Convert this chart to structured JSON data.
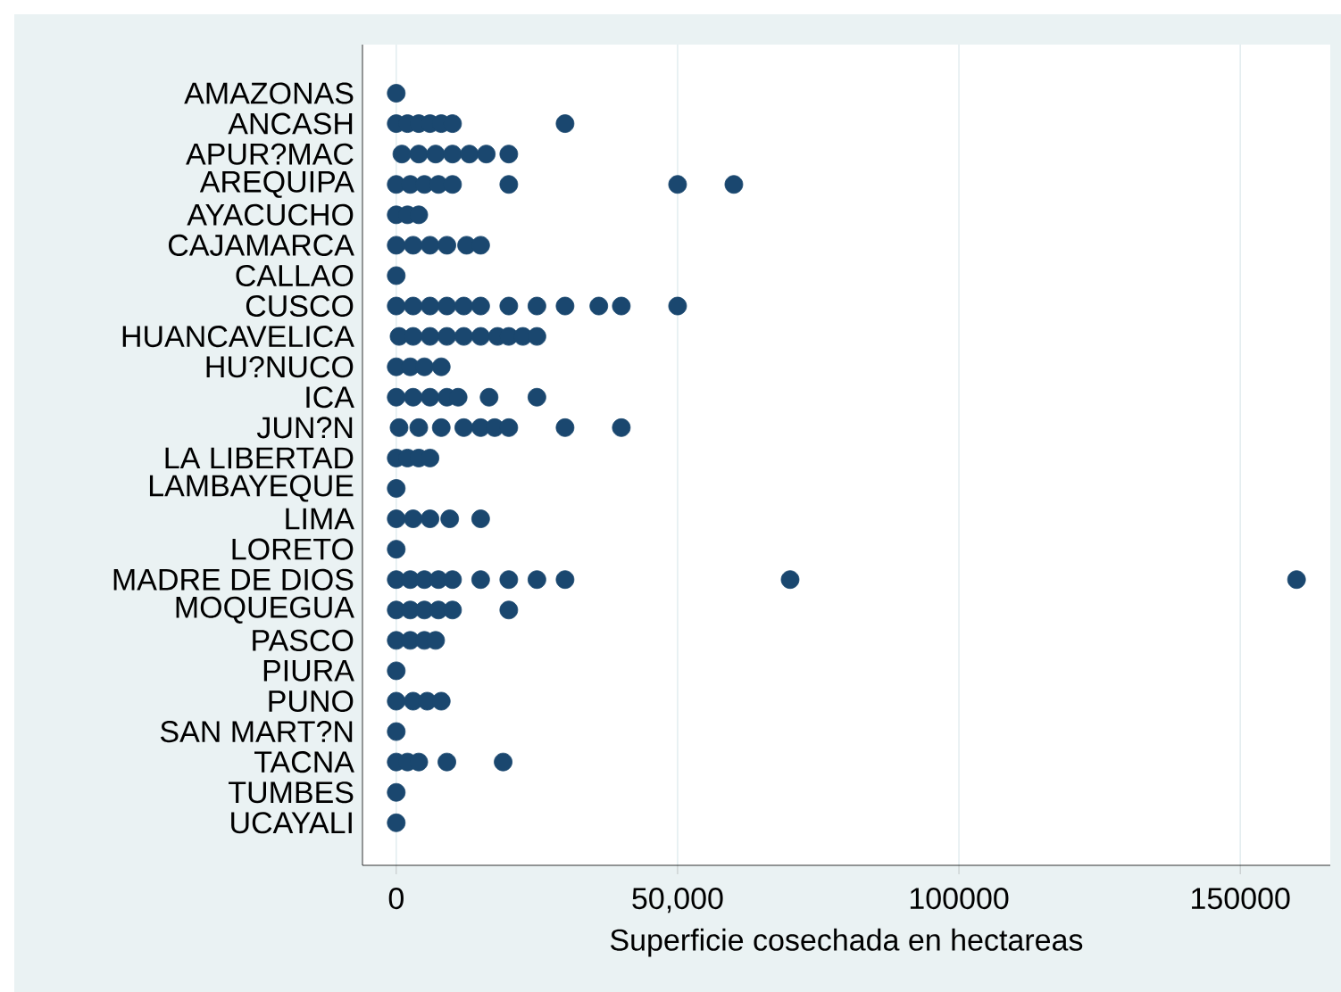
{
  "chart_data": {
    "type": "scatter",
    "orientation": "horizontal",
    "xlabel": "Superficie cosechada en hectareas",
    "categories": [
      "AMAZONAS",
      "ANCASH",
      "APUR?MAC",
      "AREQUIPA",
      "AYACUCHO",
      "CAJAMARCA",
      "CALLAO",
      "CUSCO",
      "HUANCAVELICA",
      "HU?NUCO",
      "ICA",
      "JUN?N",
      "LA LIBERTAD",
      "LAMBAYEQUE",
      "LIMA",
      "LORETO",
      "MADRE DE DIOS",
      "MOQUEGUA",
      "PASCO",
      "PIURA",
      "PUNO",
      "SAN MART?N",
      "TACNA",
      "TUMBES",
      "UCAYALI"
    ],
    "series": [
      {
        "color": "#1a476f",
        "values": [
          0,
          0,
          1000,
          0,
          0,
          0,
          0,
          0,
          500,
          0,
          0,
          500,
          0,
          0,
          0,
          0,
          0,
          0,
          0,
          0,
          0,
          0,
          0,
          0,
          0
        ]
      },
      {
        "color": "#1a476f",
        "values": [
          null,
          2000,
          4000,
          2500,
          2000,
          3000,
          null,
          3000,
          3000,
          2500,
          3000,
          4000,
          2000,
          null,
          3000,
          null,
          2500,
          2500,
          2500,
          null,
          3000,
          null,
          2000,
          null,
          null
        ]
      },
      {
        "color": "#1a476f",
        "values": [
          null,
          4000,
          7000,
          5000,
          4000,
          6000,
          null,
          6000,
          6000,
          5000,
          6000,
          8000,
          4000,
          null,
          6000,
          null,
          5000,
          5000,
          5000,
          null,
          5500,
          null,
          4000,
          null,
          null
        ]
      },
      {
        "color": "#1a476f",
        "values": [
          null,
          6000,
          10000,
          7500,
          null,
          9000,
          null,
          9000,
          9000,
          8000,
          9000,
          12000,
          6000,
          null,
          9500,
          null,
          7500,
          7500,
          7000,
          null,
          8000,
          null,
          9000,
          null,
          null
        ]
      },
      {
        "color": "#1a476f",
        "values": [
          null,
          8000,
          13000,
          10000,
          null,
          12500,
          null,
          12000,
          12000,
          null,
          11000,
          15000,
          null,
          null,
          15000,
          null,
          10000,
          10000,
          null,
          null,
          null,
          null,
          19000,
          null,
          null
        ]
      },
      {
        "color": "#1a476f",
        "values": [
          null,
          10000,
          16000,
          20000,
          null,
          15000,
          null,
          15000,
          15000,
          null,
          16500,
          17500,
          null,
          null,
          null,
          null,
          15000,
          20000,
          null,
          null,
          null,
          null,
          null,
          null,
          null
        ]
      },
      {
        "color": "#1a476f",
        "values": [
          null,
          30000,
          20000,
          50000,
          null,
          null,
          null,
          20000,
          18000,
          null,
          25000,
          20000,
          null,
          null,
          null,
          null,
          20000,
          null,
          null,
          null,
          null,
          null,
          null,
          null,
          null
        ]
      },
      {
        "color": "#1a476f",
        "values": [
          null,
          null,
          null,
          60000,
          null,
          null,
          null,
          25000,
          20000,
          null,
          null,
          30000,
          null,
          null,
          null,
          null,
          25000,
          null,
          null,
          null,
          null,
          null,
          null,
          null,
          null
        ]
      },
      {
        "color": "#1a476f",
        "values": [
          null,
          null,
          null,
          null,
          null,
          null,
          null,
          30000,
          22500,
          null,
          null,
          40000,
          null,
          null,
          null,
          null,
          30000,
          null,
          null,
          null,
          null,
          null,
          null,
          null,
          null
        ]
      },
      {
        "color": "#1a476f",
        "values": [
          null,
          null,
          null,
          null,
          null,
          null,
          null,
          36000,
          25000,
          null,
          null,
          null,
          null,
          null,
          null,
          null,
          70000,
          null,
          null,
          null,
          null,
          null,
          null,
          null,
          null
        ]
      },
      {
        "color": "#1a476f",
        "values": [
          null,
          null,
          null,
          null,
          null,
          null,
          null,
          40000,
          null,
          null,
          null,
          null,
          null,
          null,
          null,
          null,
          160000,
          null,
          null,
          null,
          null,
          null,
          null,
          null,
          null
        ]
      },
      {
        "color": "#1a476f",
        "values": [
          null,
          null,
          null,
          null,
          null,
          null,
          null,
          50000,
          null,
          null,
          null,
          null,
          null,
          null,
          null,
          null,
          null,
          null,
          null,
          null,
          null,
          null,
          null,
          null,
          null
        ]
      }
    ],
    "xlim": [
      -6000,
      166000
    ],
    "xticks": [
      0,
      {
        "value": 50000,
        "label": "50,000"
      },
      100000,
      150000
    ],
    "grid": "x"
  }
}
